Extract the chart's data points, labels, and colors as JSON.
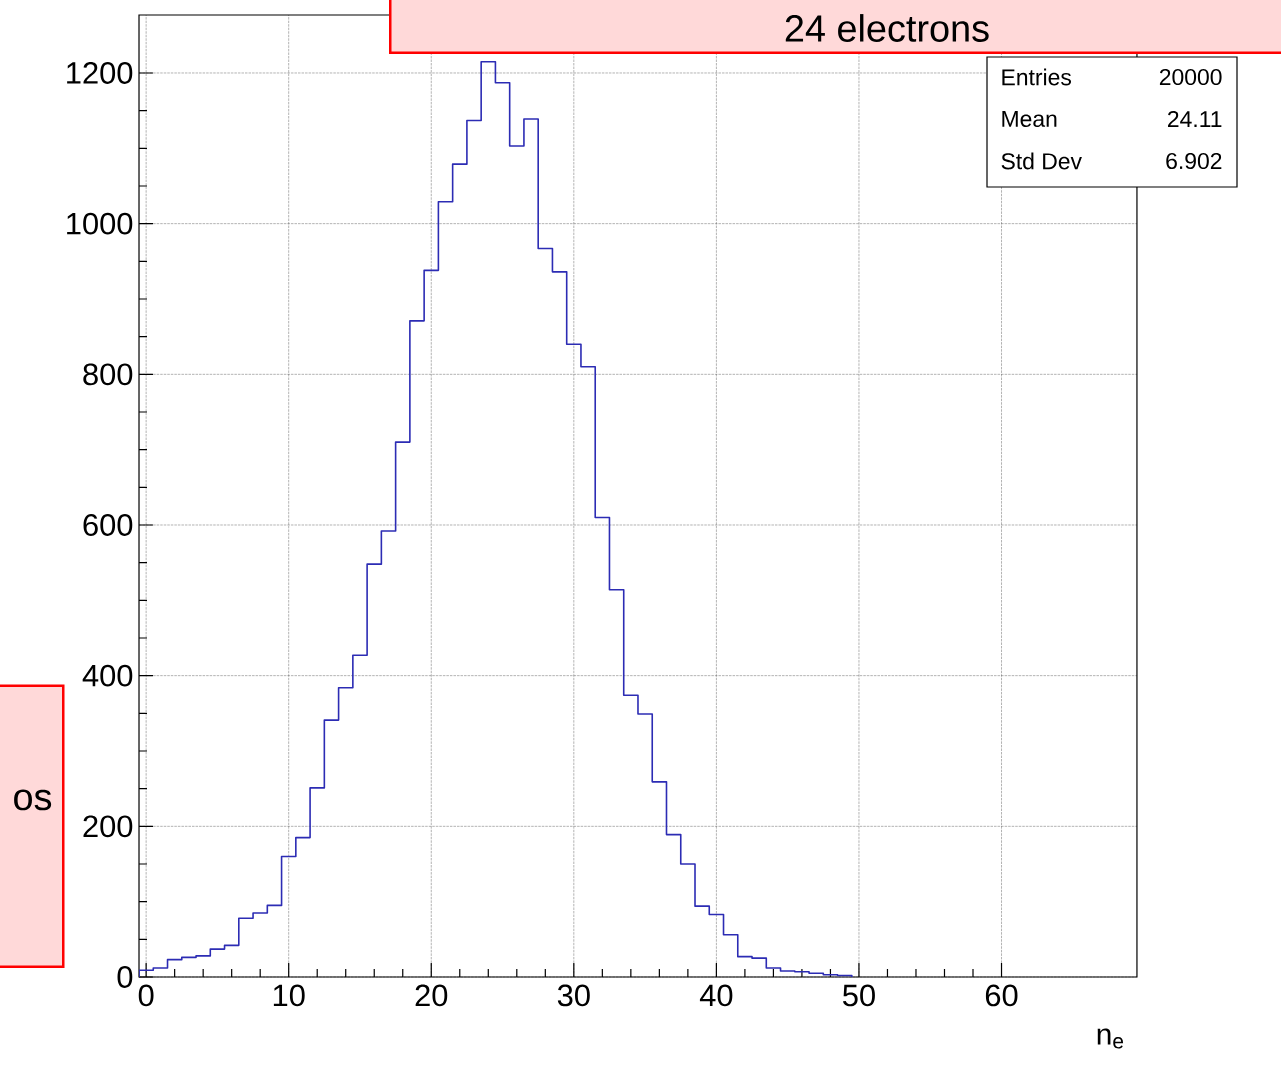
{
  "chart_data": {
    "type": "histogram",
    "bins": [
      -0.5,
      0.5,
      1.5,
      2.5,
      3.5,
      4.5,
      5.5,
      6.5,
      7.5,
      8.5,
      9.5,
      10.5,
      11.5,
      12.5,
      13.5,
      14.5,
      15.5,
      16.5,
      17.5,
      18.5,
      19.5,
      20.5,
      21.5,
      22.5,
      23.5,
      24.5,
      25.5,
      26.5,
      27.5,
      28.5,
      29.5,
      30.5,
      31.5,
      32.5,
      33.5,
      34.5,
      35.5,
      36.5,
      37.5,
      38.5,
      39.5,
      40.5,
      41.5,
      42.5,
      43.5,
      44.5,
      45.5,
      46.5,
      47.5,
      48.5,
      49.5
    ],
    "values": [
      9,
      12,
      23,
      26,
      28,
      37,
      42,
      78,
      85,
      95,
      160,
      185,
      251,
      341,
      384,
      427,
      548,
      592,
      710,
      871,
      938,
      1029,
      1079,
      1137,
      1215,
      1187,
      1103,
      1139,
      967,
      936,
      840,
      810,
      610,
      514,
      374,
      349,
      259,
      189,
      150,
      94,
      83,
      56,
      27,
      25,
      12,
      8,
      7,
      5,
      3,
      2
    ],
    "color": "#2c2cb4",
    "xlim": [
      -0.5,
      69.5
    ],
    "ylim": [
      0,
      1277
    ],
    "xticks": [
      0,
      10,
      20,
      30,
      40,
      50,
      60
    ],
    "yticks": [
      0,
      200,
      400,
      600,
      800,
      1000,
      1200
    ],
    "grid": true,
    "xlabel": "n$_{e}$",
    "annotations": [
      "24 electrons",
      "os",
      "Entries",
      "20000",
      "Mean",
      "24.11",
      "Std Dev",
      "6.902"
    ]
  }
}
